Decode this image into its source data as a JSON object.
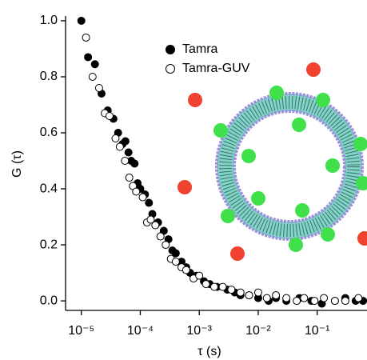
{
  "chart_data": {
    "type": "scatter",
    "x_label": "τ (s)",
    "y_label": "G (τ)",
    "xscale": "log",
    "xlim": [
      5.4e-06,
      0.7
    ],
    "ylim": [
      -0.034,
      1.017
    ],
    "xticks": [
      {
        "value": 1e-05,
        "label": "10⁻⁵"
      },
      {
        "value": 0.0001,
        "label": "10⁻⁴"
      },
      {
        "value": 0.001,
        "label": "10⁻³"
      },
      {
        "value": 0.01,
        "label": "10⁻²"
      },
      {
        "value": 0.1,
        "label": "10⁻¹"
      }
    ],
    "yticks": [
      {
        "value": 0,
        "label": "0.0"
      },
      0.2,
      0.4,
      0.6,
      0.8,
      {
        "value": 1,
        "label": "1.0"
      }
    ],
    "series": [
      {
        "name": "Tamra",
        "color": "#000000",
        "filled": true,
        "x": [
          1e-05,
          1.3e-05,
          1.7e-05,
          2.2e-05,
          2.8e-05,
          3.5e-05,
          4.2e-05,
          5e-05,
          5.6e-05,
          6.3e-05,
          7e-05,
          8e-05,
          9e-05,
          0.0001,
          0.00012,
          0.00014,
          0.00016,
          0.0002,
          0.00025,
          0.0003,
          0.00035,
          0.0004,
          0.0005,
          0.0006,
          0.0007,
          0.0009,
          0.0012,
          0.0015,
          0.002,
          0.003,
          0.004,
          0.005,
          0.007,
          0.01,
          0.015,
          0.02,
          0.03,
          0.05,
          0.08,
          0.12,
          0.2,
          0.3,
          0.45,
          0.6
        ],
        "values": [
          1.0,
          0.87,
          0.845,
          0.74,
          0.68,
          0.65,
          0.6,
          0.56,
          0.57,
          0.53,
          0.5,
          0.49,
          0.42,
          0.4,
          0.38,
          0.35,
          0.31,
          0.28,
          0.25,
          0.22,
          0.18,
          0.17,
          0.14,
          0.12,
          0.1,
          0.09,
          0.07,
          0.06,
          0.05,
          0.04,
          0.03,
          0.02,
          0.02,
          0.01,
          0.0,
          0.01,
          0.0,
          0.01,
          0.0,
          -0.01,
          0.0,
          0.01,
          0.0,
          0.0
        ]
      },
      {
        "name": "Tamra-GUV",
        "color": "#000000",
        "filled": false,
        "x": [
          1.2e-05,
          1.55e-05,
          2e-05,
          2.5e-05,
          3e-05,
          3.8e-05,
          4.5e-05,
          5.5e-05,
          6.5e-05,
          7.5e-05,
          8.5e-05,
          0.00011,
          0.00013,
          0.00015,
          0.00018,
          0.00022,
          0.00027,
          0.00033,
          0.0004,
          0.0005,
          0.0006,
          0.0008,
          0.001,
          0.0013,
          0.0018,
          0.0025,
          0.0035,
          0.005,
          0.007,
          0.01,
          0.014,
          0.02,
          0.03,
          0.045,
          0.06,
          0.09,
          0.13,
          0.2,
          0.3,
          0.5
        ],
        "values": [
          0.94,
          0.8,
          0.76,
          0.67,
          0.66,
          0.58,
          0.55,
          0.5,
          0.44,
          0.41,
          0.39,
          0.37,
          0.28,
          0.29,
          0.27,
          0.23,
          0.2,
          0.15,
          0.14,
          0.12,
          0.11,
          0.08,
          0.09,
          0.06,
          0.05,
          0.05,
          0.04,
          0.03,
          0.02,
          0.03,
          0.01,
          0.02,
          0.01,
          0.0,
          0.01,
          0.0,
          0.01,
          0.0,
          0.0,
          0.01
        ]
      }
    ]
  }
}
